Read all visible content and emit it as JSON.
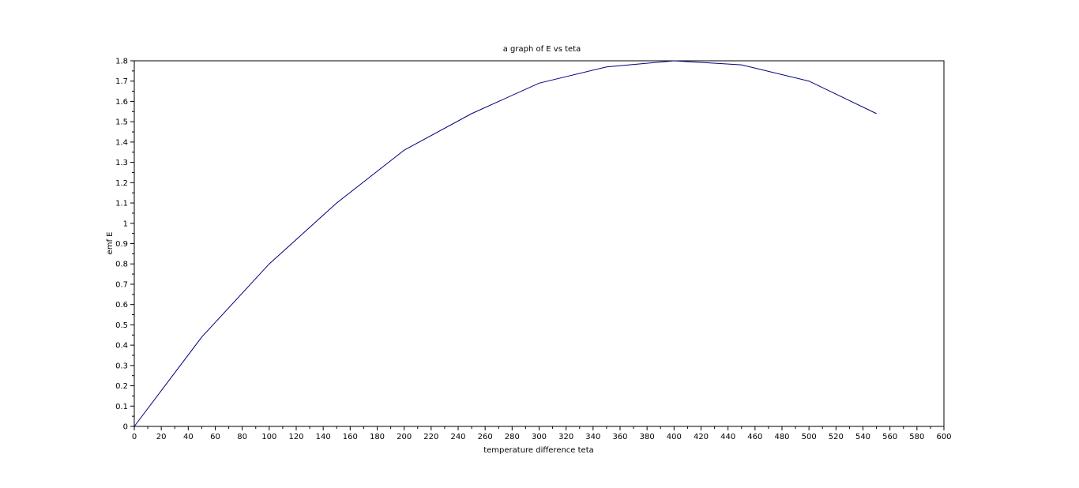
{
  "chart_data": {
    "type": "line",
    "title": "a graph of E vs teta",
    "xlabel": "temperature difference teta",
    "ylabel": "emf E",
    "xlim": [
      0,
      600
    ],
    "ylim": [
      0,
      1.8
    ],
    "xticks": [
      0,
      20,
      40,
      60,
      80,
      100,
      120,
      140,
      160,
      180,
      200,
      220,
      240,
      260,
      280,
      300,
      320,
      340,
      360,
      380,
      400,
      420,
      440,
      460,
      480,
      500,
      520,
      540,
      560,
      580,
      600
    ],
    "yticks": [
      0,
      0.1,
      0.2,
      0.3,
      0.4,
      0.5,
      0.6,
      0.7,
      0.8,
      0.9,
      1,
      1.1,
      1.2,
      1.3,
      1.4,
      1.5,
      1.6,
      1.7,
      1.8
    ],
    "ytick_labels": [
      "0",
      "0.1",
      "0.2",
      "0.3",
      "0.4",
      "0.5",
      "0.6",
      "0.7",
      "0.8",
      "0.9",
      "1",
      "1.1",
      "1.2",
      "1.3",
      "1.4",
      "1.5",
      "1.6",
      "1.7",
      "1.8"
    ],
    "grid": false,
    "series": [
      {
        "color": "#000080",
        "x": [
          0,
          50,
          100,
          150,
          200,
          250,
          300,
          350,
          400,
          450,
          500,
          550
        ],
        "y": [
          0,
          0.44,
          0.8,
          1.1,
          1.36,
          1.54,
          1.69,
          1.77,
          1.8,
          1.78,
          1.7,
          1.54
        ]
      }
    ]
  }
}
